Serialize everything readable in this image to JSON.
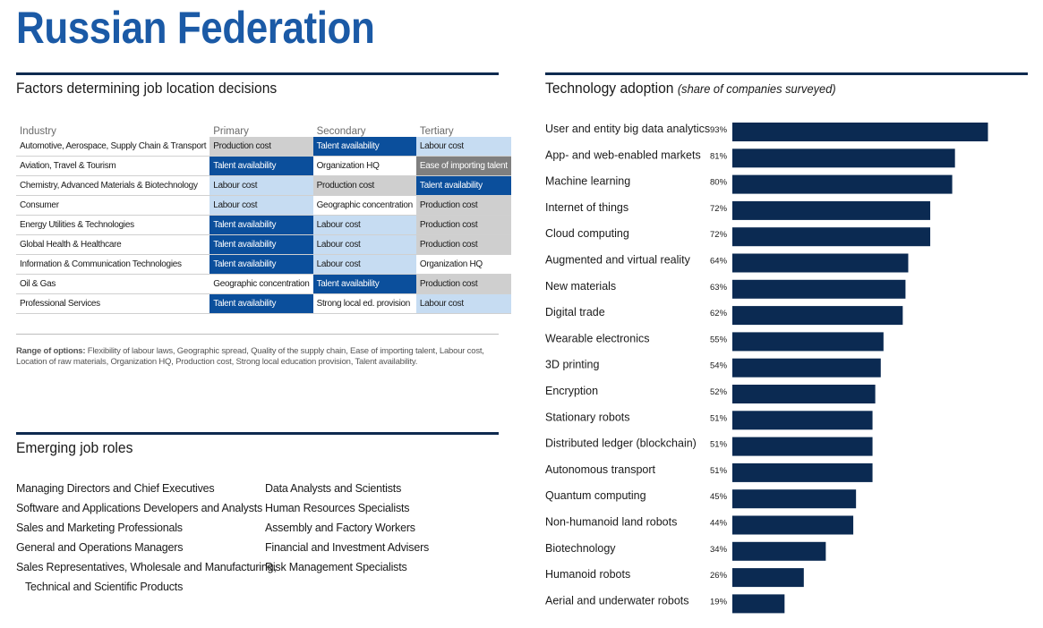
{
  "title": "Russian Federation",
  "factors": {
    "heading": "Factors determining job location decisions",
    "columns": [
      "Industry",
      "Primary",
      "Secondary",
      "Tertiary"
    ],
    "rows": [
      {
        "industry": "Automotive, Aerospace, Supply Chain & Transport",
        "cells": [
          {
            "text": "Production cost",
            "shade": "gray"
          },
          {
            "text": "Talent availability",
            "shade": "dark"
          },
          {
            "text": "Labour cost",
            "shade": "light"
          }
        ]
      },
      {
        "industry": "Aviation, Travel & Tourism",
        "cells": [
          {
            "text": "Talent availability",
            "shade": "dark"
          },
          {
            "text": "Organization HQ",
            "shade": "white"
          },
          {
            "text": "Ease of importing talent",
            "shade": "dgray"
          }
        ]
      },
      {
        "industry": "Chemistry, Advanced Materials & Biotechnology",
        "cells": [
          {
            "text": "Labour cost",
            "shade": "light"
          },
          {
            "text": "Production cost",
            "shade": "gray"
          },
          {
            "text": "Talent availability",
            "shade": "dark"
          }
        ]
      },
      {
        "industry": "Consumer",
        "cells": [
          {
            "text": "Labour cost",
            "shade": "light"
          },
          {
            "text": "Geographic concentration",
            "shade": "white"
          },
          {
            "text": "Production cost",
            "shade": "gray"
          }
        ]
      },
      {
        "industry": "Energy Utilities & Technologies",
        "cells": [
          {
            "text": "Talent availability",
            "shade": "dark"
          },
          {
            "text": "Labour cost",
            "shade": "light"
          },
          {
            "text": "Production cost",
            "shade": "gray"
          }
        ]
      },
      {
        "industry": "Global Health & Healthcare",
        "cells": [
          {
            "text": "Talent availability",
            "shade": "dark"
          },
          {
            "text": "Labour cost",
            "shade": "light"
          },
          {
            "text": "Production cost",
            "shade": "gray"
          }
        ]
      },
      {
        "industry": "Information & Communication Technologies",
        "cells": [
          {
            "text": "Talent availability",
            "shade": "dark"
          },
          {
            "text": "Labour cost",
            "shade": "light"
          },
          {
            "text": "Organization HQ",
            "shade": "white"
          }
        ]
      },
      {
        "industry": "Oil & Gas",
        "cells": [
          {
            "text": "Geographic concentration",
            "shade": "white"
          },
          {
            "text": "Talent availability",
            "shade": "dark"
          },
          {
            "text": "Production cost",
            "shade": "gray"
          }
        ]
      },
      {
        "industry": "Professional Services",
        "cells": [
          {
            "text": "Talent availability",
            "shade": "dark"
          },
          {
            "text": "Strong local ed. provision",
            "shade": "white"
          },
          {
            "text": "Labour cost",
            "shade": "light"
          }
        ]
      }
    ],
    "range_label": "Range of options:",
    "range_text": "Flexibility of labour laws, Geographic spread, Quality of the supply chain, Ease of importing talent, Labour cost, Location of raw materials, Organization HQ, Production cost, Strong local education provision, Talent availability."
  },
  "roles": {
    "heading": "Emerging job roles",
    "left": [
      "Managing Directors and Chief Executives",
      "Software and Applications Developers and Analysts",
      "Sales and Marketing Professionals",
      "General and Operations Managers",
      "Sales Representatives, Wholesale and Manufacturing,",
      "Technical and Scientific Products"
    ],
    "right": [
      "Data Analysts and Scientists",
      "Human Resources Specialists",
      "Assembly and Factory Workers",
      "Financial and Investment Advisers",
      "Risk Management Specialists"
    ]
  },
  "tech": {
    "heading": "Technology adoption",
    "subheading": "(share of companies surveyed)"
  },
  "colors": {
    "title": "#1b5aa6",
    "rule": "#0e2a4f",
    "bar": "#0b2a52",
    "dark_cell": "#0b4f9c",
    "light_cell": "#c6dcf2",
    "gray_cell": "#cfcfcf",
    "dark_gray_cell": "#7f7f7f"
  },
  "chart_data": {
    "type": "bar",
    "orientation": "horizontal",
    "categories": [
      "User and entity big data analytics",
      "App- and web-enabled markets",
      "Machine learning",
      "Internet of things",
      "Cloud computing",
      "Augmented and virtual reality",
      "New materials",
      "Digital trade",
      "Wearable electronics",
      "3D printing",
      "Encryption",
      "Stationary robots",
      "Distributed ledger (blockchain)",
      "Autonomous transport",
      "Quantum computing",
      "Non-humanoid land robots",
      "Biotechnology",
      "Humanoid robots",
      "Aerial and underwater robots"
    ],
    "values": [
      93,
      81,
      80,
      72,
      72,
      64,
      63,
      62,
      55,
      54,
      52,
      51,
      51,
      51,
      45,
      44,
      34,
      26,
      19
    ],
    "value_labels": [
      "93%",
      "81%",
      "80%",
      "72%",
      "72%",
      "64%",
      "63%",
      "62%",
      "55%",
      "54%",
      "52%",
      "51%",
      "51%",
      "51%",
      "45%",
      "44%",
      "34%",
      "26%",
      "19%"
    ],
    "xlim": [
      0,
      100
    ],
    "grid": false
  }
}
